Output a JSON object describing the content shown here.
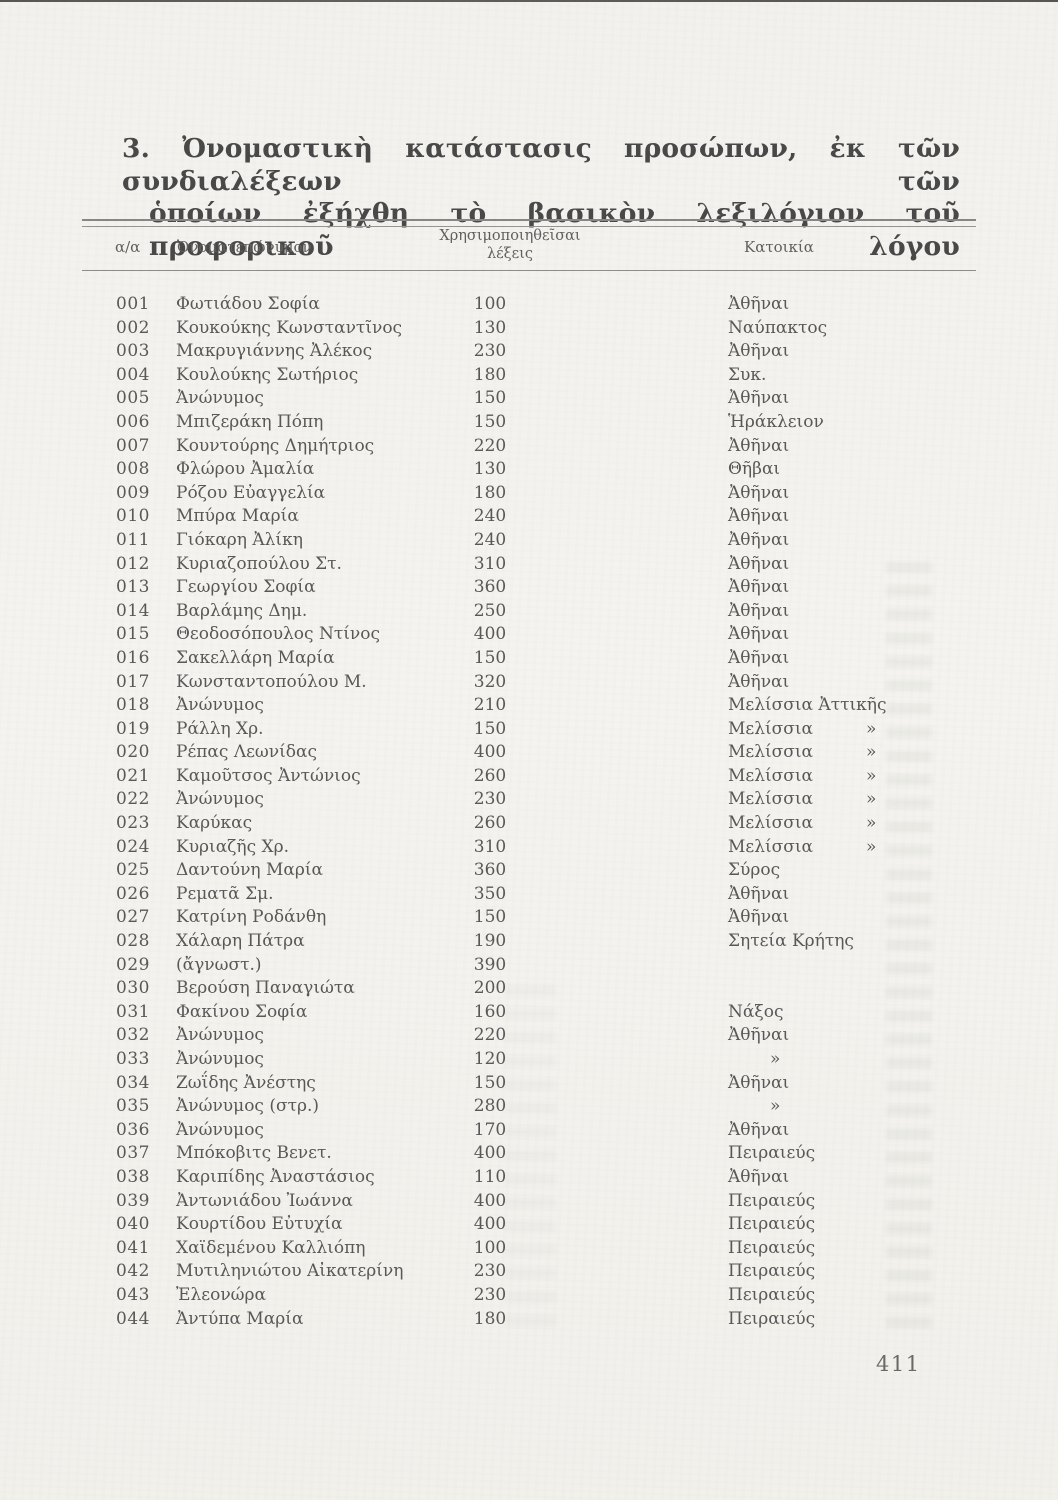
{
  "heading": {
    "line1": "3. Ὀνομαστικὴ κατάστασις προσώπων, ἐκ τῶν συνδιαλέξεων τῶν",
    "line2": "ὁποίων ἐξήχθη τὸ βασικὸν λεξιλόγιον τοῦ προφορικοῦ λόγου"
  },
  "page": {
    "number": "411"
  },
  "table": {
    "headers": {
      "index": "α/α",
      "name": "Ὀνοματεπώνυμον",
      "words_line1": "Χρησιμοποιηθεῖσαι",
      "words_line2": "λέξεις",
      "residence": "Κατοικία"
    },
    "rows": [
      {
        "n": "001",
        "name": "Φωτιάδου Σοφία",
        "w": "100",
        "res": "Ἀθῆναι",
        "mark": ""
      },
      {
        "n": "002",
        "name": "Κουκούκης Κωνσταντῖνος",
        "w": "130",
        "res": "Ναύπακτος",
        "mark": ""
      },
      {
        "n": "003",
        "name": "Μακρυγιάννης Ἀλέκος",
        "w": "230",
        "res": "Ἀθῆναι",
        "mark": ""
      },
      {
        "n": "004",
        "name": "Κουλούκης Σωτήριος",
        "w": "180",
        "res": "Συκ.",
        "mark": ""
      },
      {
        "n": "005",
        "name": "Ἀνώνυμος",
        "w": "150",
        "res": "Ἀθῆναι",
        "mark": ""
      },
      {
        "n": "006",
        "name": "Μπιζεράκη Πόπη",
        "w": "150",
        "res": "Ἡράκλειον",
        "mark": ""
      },
      {
        "n": "007",
        "name": "Κουντούρης Δημήτριος",
        "w": "220",
        "res": "Ἀθῆναι",
        "mark": ""
      },
      {
        "n": "008",
        "name": "Φλώρου Ἀμαλία",
        "w": "130",
        "res": "Θῆβαι",
        "mark": ""
      },
      {
        "n": "009",
        "name": "Ρόζου Εὐαγγελία",
        "w": "180",
        "res": "Ἀθῆναι",
        "mark": ""
      },
      {
        "n": "010",
        "name": "Μπύρα Μαρία",
        "w": "240",
        "res": "Ἀθῆναι",
        "mark": ""
      },
      {
        "n": "011",
        "name": "Γιόκαρη Ἀλίκη",
        "w": "240",
        "res": "Ἀθῆναι",
        "mark": ""
      },
      {
        "n": "012",
        "name": "Κυριαζοπούλου Στ.",
        "w": "310",
        "res": "Ἀθῆναι",
        "mark": ""
      },
      {
        "n": "013",
        "name": "Γεωργίου Σοφία",
        "w": "360",
        "res": "Ἀθῆναι",
        "mark": ""
      },
      {
        "n": "014",
        "name": "Βαρλάμης Δημ.",
        "w": "250",
        "res": "Ἀθῆναι",
        "mark": ""
      },
      {
        "n": "015",
        "name": "Θεοδοσόπουλος Ντίνος",
        "w": "400",
        "res": "Ἀθῆναι",
        "mark": ""
      },
      {
        "n": "016",
        "name": "Σακελλάρη Μαρία",
        "w": "150",
        "res": "Ἀθῆναι",
        "mark": ""
      },
      {
        "n": "017",
        "name": "Κωνσταντοπούλου Μ.",
        "w": "320",
        "res": "Ἀθῆναι",
        "mark": ""
      },
      {
        "n": "018",
        "name": "Ἀνώνυμος",
        "w": "210",
        "res": "Μελίσσια Ἀττικῆς",
        "mark": ""
      },
      {
        "n": "019",
        "name": "Ράλλη Χρ.",
        "w": "150",
        "res": "Μελίσσια",
        "mark": "»"
      },
      {
        "n": "020",
        "name": "Ρέπας Λεωνίδας",
        "w": "400",
        "res": "Μελίσσια",
        "mark": "»"
      },
      {
        "n": "021",
        "name": "Καμοῦτσος Ἀντώνιος",
        "w": "260",
        "res": "Μελίσσια",
        "mark": "»"
      },
      {
        "n": "022",
        "name": "Ἀνώνυμος",
        "w": "230",
        "res": "Μελίσσια",
        "mark": "»"
      },
      {
        "n": "023",
        "name": "Καρύκας",
        "w": "260",
        "res": "Μελίσσια",
        "mark": "»"
      },
      {
        "n": "024",
        "name": "Κυριαζῆς Χρ.",
        "w": "310",
        "res": "Μελίσσια",
        "mark": "»"
      },
      {
        "n": "025",
        "name": "Δαντούνη Μαρία",
        "w": "360",
        "res": "Σύρος",
        "mark": ""
      },
      {
        "n": "026",
        "name": "Ρεματᾶ Σμ.",
        "w": "350",
        "res": "Ἀθῆναι",
        "mark": ""
      },
      {
        "n": "027",
        "name": "Κατρίνη Ροδάνθη",
        "w": "150",
        "res": "Ἀθῆναι",
        "mark": ""
      },
      {
        "n": "028",
        "name": "Χάλαρη Πάτρα",
        "w": "190",
        "res": "Σητεία Κρήτης",
        "mark": ""
      },
      {
        "n": "029",
        "name": "(ἄγνωστ.)",
        "w": "390",
        "res": "",
        "mark": ""
      },
      {
        "n": "030",
        "name": "Βερούση Παναγιώτα",
        "w": "200",
        "res": "",
        "mark": ""
      },
      {
        "n": "031",
        "name": "Φακίνου Σοφία",
        "w": "160",
        "res": "Νάξος",
        "mark": ""
      },
      {
        "n": "032",
        "name": "Ἀνώνυμος",
        "w": "220",
        "res": "Ἀθῆναι",
        "mark": ""
      },
      {
        "n": "033",
        "name": "Ἀνώνυμος",
        "w": "120",
        "res": "",
        "mark": "»"
      },
      {
        "n": "034",
        "name": "Ζωΐδης Ἀνέστης",
        "w": "150",
        "res": "Ἀθῆναι",
        "mark": ""
      },
      {
        "n": "035",
        "name": "Ἀνώνυμος (στρ.)",
        "w": "280",
        "res": "",
        "mark": "»"
      },
      {
        "n": "036",
        "name": "Ἀνώνυμος",
        "w": "170",
        "res": "Ἀθῆναι",
        "mark": ""
      },
      {
        "n": "037",
        "name": "Μπόκοβιτς Βενετ.",
        "w": "400",
        "res": "Πειραιεύς",
        "mark": ""
      },
      {
        "n": "038",
        "name": "Καριπίδης Ἀναστάσιος",
        "w": "110",
        "res": "Ἀθῆναι",
        "mark": ""
      },
      {
        "n": "039",
        "name": "Ἀντωνιάδου Ἰωάννα",
        "w": "400",
        "res": "Πειραιεύς",
        "mark": ""
      },
      {
        "n": "040",
        "name": "Κουρτίδου Εὐτυχία",
        "w": "400",
        "res": "Πειραιεύς",
        "mark": ""
      },
      {
        "n": "041",
        "name": "Χαϊδεμένου Καλλιόπη",
        "w": "100",
        "res": "Πειραιεύς",
        "mark": ""
      },
      {
        "n": "042",
        "name": "Μυτιληνιώτου Αἰκατερίνη",
        "w": "230",
        "res": "Πειραιεύς",
        "mark": ""
      },
      {
        "n": "043",
        "name": "Ἐλεονώρα",
        "w": "230",
        "res": "Πειραιεύς",
        "mark": ""
      },
      {
        "n": "044",
        "name": "Ἀντύπα Μαρία",
        "w": "180",
        "res": "Πειραιεύς",
        "mark": ""
      }
    ]
  }
}
